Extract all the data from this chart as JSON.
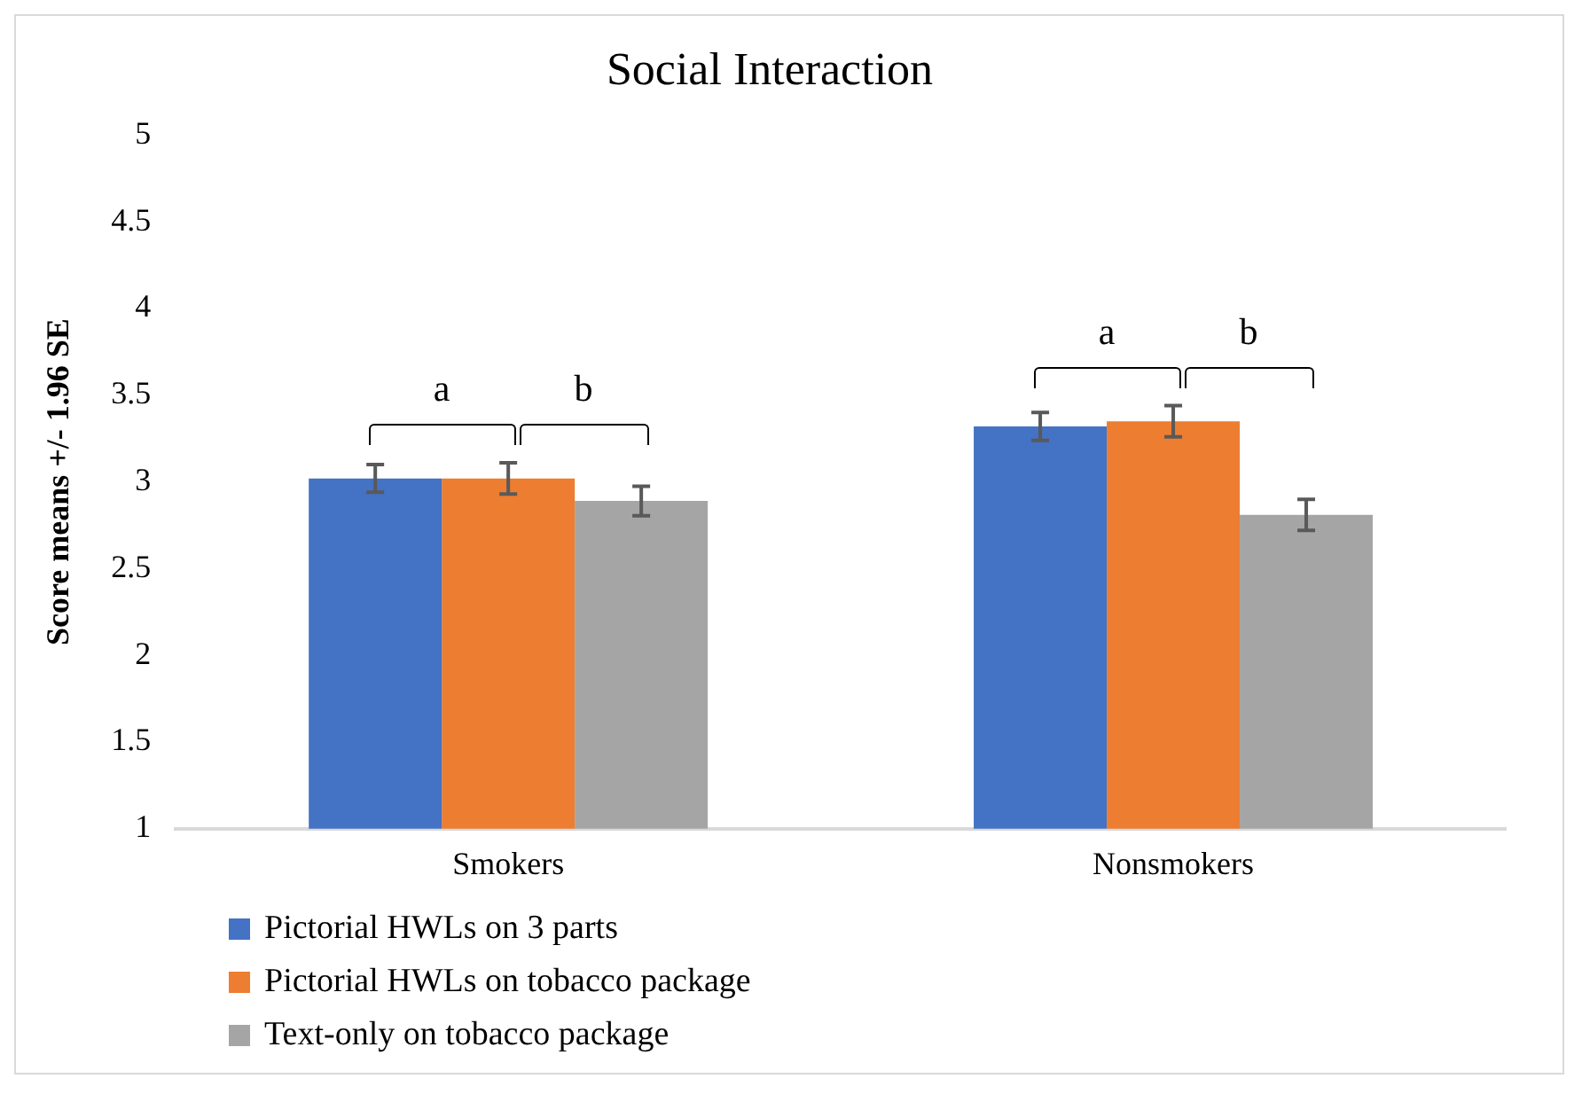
{
  "chart_data": {
    "type": "bar",
    "title": "Social Interaction",
    "ylabel": "Score means +/- 1.96 SE",
    "categories": [
      "Smokers",
      "Nonsmokers"
    ],
    "series": [
      {
        "name": "Pictorial HWLs on 3 parts",
        "color": "#4472c4",
        "values": [
          3.02,
          3.32
        ],
        "errors": [
          0.08,
          0.08
        ]
      },
      {
        "name": "Pictorial HWLs on tobacco package",
        "color": "#ed7d31",
        "values": [
          3.02,
          3.35
        ],
        "errors": [
          0.09,
          0.09
        ]
      },
      {
        "name": "Text-only on tobacco package",
        "color": "#a5a5a5",
        "values": [
          2.89,
          2.81
        ],
        "errors": [
          0.085,
          0.09
        ]
      }
    ],
    "ylim": [
      1,
      5
    ],
    "yticks": [
      1,
      1.5,
      2,
      2.5,
      3,
      3.5,
      4,
      4.5,
      5
    ],
    "grid": false,
    "legend": "bottom",
    "annotations": [
      "a",
      "b",
      "a",
      "b"
    ]
  }
}
